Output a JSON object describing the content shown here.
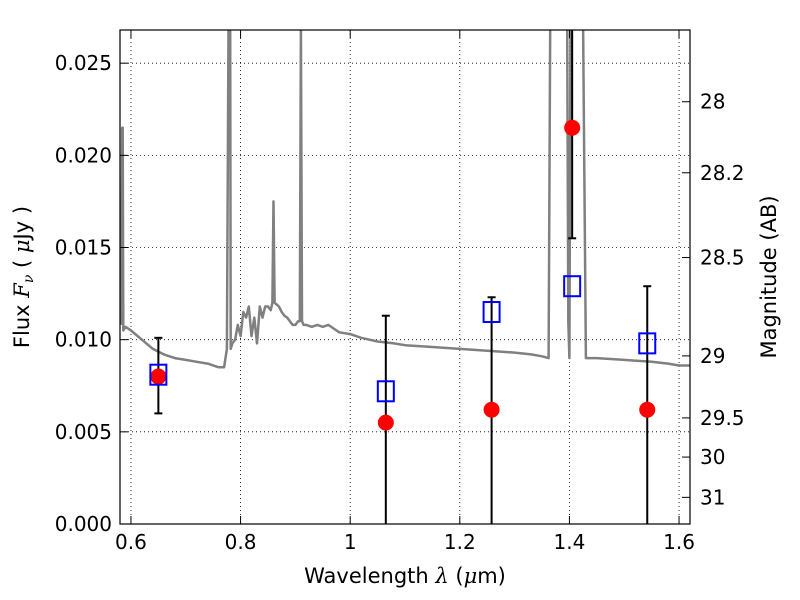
{
  "chart_data": {
    "type": "scatter",
    "title": "",
    "xlabel": "Wavelength  λ (μm)",
    "ylabel": "Flux  Fν  ( μJy )",
    "y2label": "Magnitude (AB)",
    "xlim": [
      0.58,
      1.62
    ],
    "ylim": [
      0.0,
      0.0268
    ],
    "grid": true,
    "x_ticks": [
      "0.6",
      "0.8",
      "1",
      "1.2",
      "1.4",
      "1.6"
    ],
    "x_tick_values": [
      0.6,
      0.8,
      1.0,
      1.2,
      1.4,
      1.6
    ],
    "y_ticks": [
      "0.000",
      "0.005",
      "0.010",
      "0.015",
      "0.020",
      "0.025"
    ],
    "y_tick_values": [
      0.0,
      0.005,
      0.01,
      0.015,
      0.02,
      0.025
    ],
    "y2_ticks": [
      "28",
      "28.2",
      "28.5",
      "29",
      "29.5",
      "30",
      "31"
    ],
    "y2_tick_values": [
      28.0,
      28.2,
      28.5,
      29.0,
      29.5,
      30.0,
      31.0
    ],
    "y2_scale": "AB magnitude (m = 23.9 - 2.5 log10(flux))",
    "model_spectrum": {
      "color": "#808080",
      "x": [
        0.582,
        0.584,
        0.585,
        0.586,
        0.59,
        0.6,
        0.62,
        0.64,
        0.66,
        0.68,
        0.7,
        0.72,
        0.74,
        0.76,
        0.77,
        0.775,
        0.778,
        0.779,
        0.781,
        0.782,
        0.785,
        0.79,
        0.795,
        0.8,
        0.805,
        0.81,
        0.815,
        0.82,
        0.825,
        0.83,
        0.835,
        0.84,
        0.845,
        0.85,
        0.855,
        0.858,
        0.86,
        0.862,
        0.866,
        0.87,
        0.875,
        0.88,
        0.885,
        0.89,
        0.895,
        0.9,
        0.905,
        0.908,
        0.91,
        0.912,
        0.915,
        0.92,
        0.93,
        0.94,
        0.95,
        0.96,
        0.97,
        0.98,
        1.0,
        1.02,
        1.05,
        1.08,
        1.1,
        1.15,
        1.2,
        1.25,
        1.3,
        1.33,
        1.35,
        1.362,
        1.365,
        1.368,
        1.371,
        1.374,
        1.378,
        1.382,
        1.386,
        1.39,
        1.394,
        1.396,
        1.398,
        1.4,
        1.402,
        1.404,
        1.406,
        1.408,
        1.41,
        1.412,
        1.415,
        1.42,
        1.425,
        1.43,
        1.45,
        1.5,
        1.55,
        1.58,
        1.6,
        1.62
      ],
      "y": [
        0.0108,
        0.0215,
        0.0215,
        0.0105,
        0.0107,
        0.0105,
        0.01,
        0.0095,
        0.0092,
        0.009,
        0.0089,
        0.0088,
        0.0087,
        0.0085,
        0.0085,
        0.0095,
        0.027,
        0.027,
        0.027,
        0.0095,
        0.0098,
        0.01,
        0.0108,
        0.0102,
        0.0115,
        0.0112,
        0.0118,
        0.0102,
        0.0112,
        0.0098,
        0.0118,
        0.0112,
        0.0118,
        0.0118,
        0.0116,
        0.012,
        0.0175,
        0.012,
        0.0119,
        0.0118,
        0.0115,
        0.0113,
        0.0112,
        0.011,
        0.0108,
        0.0108,
        0.011,
        0.011,
        0.027,
        0.011,
        0.0108,
        0.0108,
        0.0107,
        0.0108,
        0.0107,
        0.0108,
        0.0106,
        0.0104,
        0.0103,
        0.0101,
        0.0099,
        0.0098,
        0.0097,
        0.0096,
        0.0095,
        0.0094,
        0.0093,
        0.0092,
        0.0091,
        0.009,
        0.027,
        0.027,
        0.027,
        0.027,
        0.027,
        0.027,
        0.027,
        0.027,
        0.027,
        0.027,
        0.011,
        0.009,
        0.027,
        0.027,
        0.027,
        0.027,
        0.027,
        0.027,
        0.027,
        0.027,
        0.027,
        0.009,
        0.009,
        0.0089,
        0.0088,
        0.0087,
        0.0086,
        0.0086
      ]
    },
    "observed_points": {
      "color": "#ff0000",
      "x": [
        0.65,
        1.065,
        1.258,
        1.405,
        1.542
      ],
      "y": [
        0.008,
        0.0055,
        0.0062,
        0.0215,
        0.0062
      ]
    },
    "error_bars": {
      "color": "#000000",
      "x": [
        0.65,
        1.065,
        1.258,
        1.405,
        1.542
      ],
      "y": [
        0.008,
        0.0055,
        0.0062,
        0.0215,
        0.0062
      ],
      "low": [
        0.006,
        0.0,
        0.0,
        0.0155,
        0.0
      ],
      "high": [
        0.0101,
        0.0113,
        0.0123,
        0.027,
        0.0129
      ]
    },
    "model_photometry": {
      "color": "#0000ff",
      "x": [
        0.65,
        1.065,
        1.258,
        1.405,
        1.542
      ],
      "y": [
        0.0081,
        0.0072,
        0.0115,
        0.0129,
        0.0098
      ]
    }
  }
}
